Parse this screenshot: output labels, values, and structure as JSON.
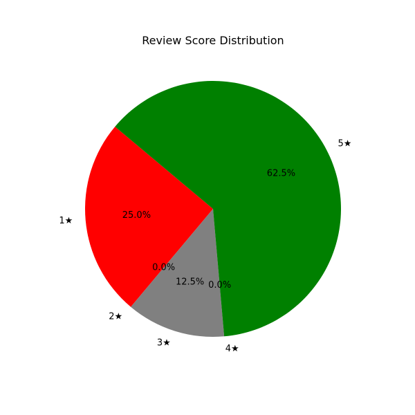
{
  "chart_data": {
    "type": "pie",
    "title": "Review Score Distribution",
    "categories": [
      "1★",
      "2★",
      "3★",
      "4★",
      "5★"
    ],
    "values": [
      25.0,
      0.0,
      12.5,
      0.0,
      62.5
    ],
    "percent_labels": [
      "25.0%",
      "0.0%",
      "12.5%",
      "0.0%",
      "62.5%"
    ],
    "colors": [
      "#ff0000",
      "#ffa500",
      "#808080",
      "#90ee90",
      "#008000"
    ],
    "start_angle_deg": 140,
    "direction": "counterclockwise"
  }
}
